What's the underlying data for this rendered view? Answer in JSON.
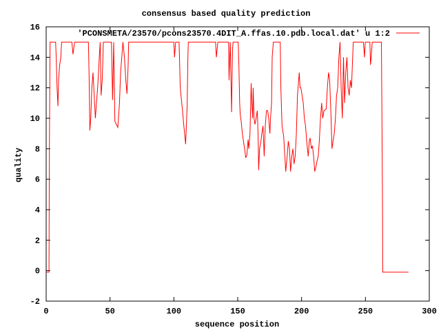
{
  "chart_data": {
    "type": "line",
    "title": "consensus based quality prediction",
    "xlabel": "sequence position",
    "ylabel": "quality",
    "xlim": [
      0,
      300
    ],
    "ylim": [
      -2,
      16
    ],
    "xticks": [
      "0",
      "50",
      "100",
      "150",
      "200",
      "250",
      "300"
    ],
    "yticks": [
      "-2",
      "0",
      "2",
      "4",
      "6",
      "8",
      "10",
      "12",
      "14",
      "16"
    ],
    "grid": false,
    "legend_position": "top-right",
    "series": [
      {
        "name": "'PCONSMETA/23570/pcons23570.4DIT_A.ffas.10.pdb.local.dat' u 1:2",
        "color": "#ff0000",
        "x": [
          0,
          2.2,
          2.5,
          3.1,
          7.4,
          7.9,
          8.5,
          9.2,
          9.7,
          10.6,
          11.5,
          12.1,
          20.1,
          21.0,
          22.3,
          33.1,
          33.6,
          34.2,
          34.9,
          35.8,
          36.7,
          37.6,
          38.5,
          39.4,
          40.3,
          41.6,
          42.3,
          43,
          43.9,
          44.8,
          51.1,
          52,
          52.9,
          53.8,
          56.1,
          57.4,
          58.3,
          59.2,
          60.1,
          61.3,
          62.4,
          63.3,
          64.2,
          64.6,
          100.0,
          100.5,
          101.4,
          104.1,
          105.0,
          105.9,
          106.8,
          107.7,
          109.2,
          110.4,
          111,
          111.3,
          132.6,
          133.3,
          134.4,
          142.8,
          143.2,
          144.1,
          144.4,
          145.2,
          145.9,
          146.4,
          150.4,
          150.9,
          151.5,
          152,
          152.7,
          153.6,
          154.5,
          155.4,
          156.3,
          157.2,
          158.1,
          158.7,
          159.6,
          160.5,
          161,
          161.7,
          162.1,
          162.8,
          163.5,
          164.4,
          165.3,
          165.9,
          166.4,
          167.1,
          168,
          168.9,
          169.8,
          170.7,
          171.6,
          172.5,
          173.4,
          174.3,
          175.2,
          175.7,
          176.5,
          177,
          177.9,
          183.3,
          183.8,
          184.7,
          186,
          186.9,
          187.6,
          188.7,
          189.6,
          190.5,
          191.4,
          192.3,
          193.2,
          194.1,
          195,
          195.9,
          196.8,
          197.7,
          198.2,
          198.8,
          199.5,
          201.3,
          202.2,
          203.1,
          204,
          205.2,
          206,
          206.7,
          207.6,
          208.5,
          209.4,
          210.3,
          211.2,
          212.1,
          213,
          213.9,
          214.8,
          215.7,
          216.6,
          217.5,
          219.3,
          220.2,
          221.1,
          222,
          222.9,
          223.8,
          224.7,
          225.6,
          226.5,
          227.4,
          228.3,
          229.2,
          230.1,
          231,
          231.9,
          232.8,
          233.7,
          234.6,
          235.5,
          236.4,
          237.3,
          238.2,
          239.1,
          240,
          240.5,
          248.4,
          249.2,
          249.9,
          253.5,
          254,
          254.5,
          255.3,
          262.5,
          262.8,
          263.4,
          263.5,
          283.7
        ],
        "y": [
          -0.1,
          -0.1,
          7.5,
          15,
          15,
          14,
          12,
          10.8,
          12.5,
          13.5,
          14,
          15,
          15,
          14.2,
          15,
          15,
          12.8,
          9.2,
          10,
          12,
          13,
          11.5,
          10,
          11,
          12,
          14,
          15,
          11.5,
          12.5,
          15,
          15,
          11.2,
          15,
          9.8,
          9.4,
          11,
          13,
          14,
          15,
          14,
          12.5,
          11.6,
          13.5,
          15,
          15,
          14,
          15,
          15,
          12,
          11.2,
          10.5,
          9.6,
          8.3,
          10.8,
          14,
          15,
          15,
          14,
          15,
          15,
          12.5,
          15,
          14,
          10.4,
          14.5,
          15,
          15,
          13.5,
          11,
          10.2,
          9.8,
          9,
          8.5,
          8,
          7.4,
          7.6,
          8.6,
          8,
          9,
          12.3,
          11,
          10,
          12,
          10,
          9.6,
          10,
          10.5,
          9,
          6.6,
          8,
          8.4,
          9,
          9.5,
          7.5,
          9.5,
          10.5,
          10.5,
          10,
          9,
          10,
          11,
          14,
          15,
          15,
          12,
          9.5,
          8.8,
          7.5,
          6.5,
          7.5,
          8.5,
          8,
          6.5,
          7.5,
          8,
          7,
          7.5,
          9,
          11.5,
          12.5,
          13,
          12,
          12,
          11,
          10,
          9.5,
          8.5,
          7.5,
          8.5,
          8.7,
          8,
          8.2,
          7.5,
          6.5,
          6.8,
          7.2,
          7.5,
          8.5,
          10,
          11,
          10,
          10.5,
          10.6,
          12,
          13,
          12.5,
          10.5,
          8,
          8.5,
          9,
          10,
          11.5,
          12,
          14,
          15,
          12,
          10,
          14,
          11,
          13,
          14,
          12,
          11.5,
          12.5,
          12,
          14,
          15,
          15,
          14,
          15,
          15,
          13.5,
          14,
          15,
          15,
          11.3,
          3.7,
          -0.1,
          -0.1
        ]
      }
    ]
  }
}
